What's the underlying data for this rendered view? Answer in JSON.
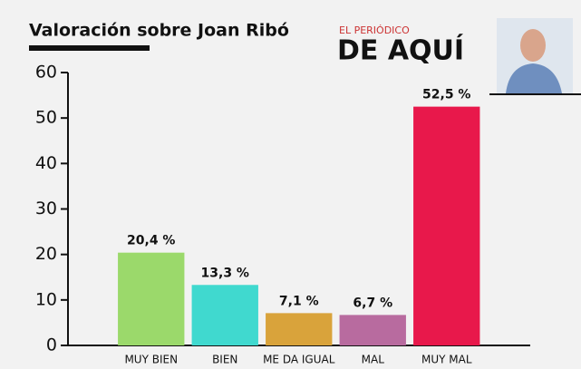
{
  "chart_data": {
    "type": "bar",
    "title": "Valoración sobre Joan Ribó",
    "logo": {
      "top": "EL PERIÓDICO",
      "main": "DE AQUÍ"
    },
    "categories": [
      "MUY BIEN",
      "BIEN",
      "ME DA IGUAL",
      "MAL",
      "MUY MAL"
    ],
    "values": [
      20.4,
      13.3,
      7.1,
      6.7,
      52.5
    ],
    "value_labels": [
      "20,4 %",
      "13,3 %",
      "7,1 %",
      "6,7 %",
      "52,5 %"
    ],
    "colors": [
      "#9bd96b",
      "#40d9cf",
      "#d9a33b",
      "#b86b9f",
      "#e8184b"
    ],
    "ylim": [
      0,
      60
    ],
    "yticks": [
      0,
      10,
      20,
      30,
      40,
      50,
      60
    ],
    "grid": false
  }
}
